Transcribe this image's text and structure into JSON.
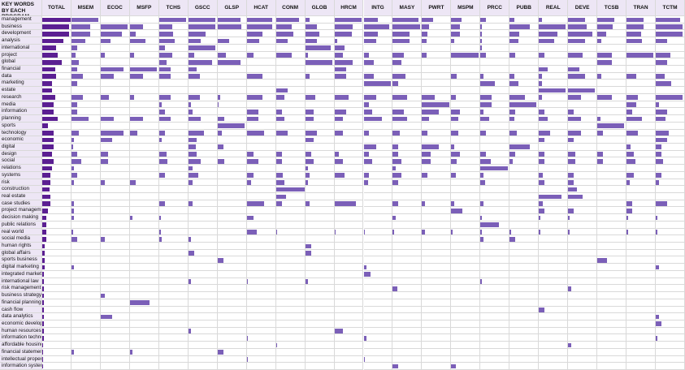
{
  "chart_data": {
    "type": "bar-table",
    "title": "KEY WORDS BY EACH PROGRAM",
    "xlim": [
      0,
      100
    ],
    "categories": [
      "management",
      "business",
      "development",
      "analysis",
      "international",
      "project",
      "global",
      "financial",
      "data",
      "marketing",
      "estate",
      "research",
      "media",
      "information",
      "planning",
      "sports",
      "technology",
      "economic",
      "digital",
      "design",
      "social",
      "relations",
      "systems",
      "risk",
      "construction",
      "real estate",
      "case studies",
      "project management",
      "decision making",
      "public relations",
      "real world",
      "social media",
      "human rights",
      "global affairs",
      "sports business",
      "digital marketing",
      "integrated marketing",
      "international law",
      "risk management",
      "business strategy",
      "financial planning",
      "cash flow",
      "data analytics",
      "economic development",
      "human resources",
      "information technology",
      "affordable housing",
      "financial statement",
      "intellectual property",
      "information systems"
    ],
    "series": [
      {
        "name": "TOTAL",
        "color": "#5b1f92",
        "values": [
          100,
          95,
          95,
          75,
          50,
          55,
          70,
          45,
          50,
          35,
          35,
          45,
          40,
          40,
          55,
          20,
          40,
          40,
          40,
          35,
          40,
          35,
          30,
          30,
          25,
          30,
          30,
          20,
          15,
          15,
          15,
          15,
          10,
          10,
          8,
          8,
          6,
          6,
          6,
          6,
          6,
          6,
          6,
          5,
          5,
          5,
          4,
          4,
          4,
          4
        ]
      },
      {
        "name": "MSEM",
        "color": "#7b5fb8",
        "values": [
          95,
          65,
          65,
          50,
          20,
          15,
          25,
          20,
          40,
          20,
          0,
          40,
          20,
          20,
          60,
          0,
          25,
          10,
          5,
          20,
          35,
          10,
          20,
          10,
          0,
          0,
          10,
          10,
          10,
          0,
          5,
          20,
          0,
          0,
          0,
          10,
          0,
          0,
          0,
          0,
          0,
          0,
          0,
          0,
          0,
          0,
          0,
          10,
          0,
          0
        ]
      },
      {
        "name": "ECOC",
        "color": "#7b5fb8",
        "values": [
          0,
          95,
          75,
          35,
          0,
          15,
          0,
          80,
          45,
          0,
          0,
          30,
          0,
          0,
          45,
          0,
          80,
          40,
          0,
          25,
          25,
          0,
          0,
          15,
          0,
          0,
          0,
          0,
          0,
          0,
          0,
          15,
          0,
          0,
          0,
          0,
          0,
          0,
          0,
          15,
          0,
          0,
          40,
          0,
          0,
          0,
          0,
          0,
          0,
          0
        ]
      },
      {
        "name": "MSFP",
        "color": "#7b5fb8",
        "values": [
          0,
          45,
          20,
          55,
          0,
          15,
          0,
          95,
          45,
          0,
          0,
          15,
          0,
          0,
          45,
          0,
          25,
          0,
          0,
          0,
          0,
          0,
          0,
          20,
          0,
          0,
          0,
          0,
          10,
          0,
          0,
          0,
          0,
          0,
          0,
          0,
          0,
          0,
          0,
          0,
          70,
          0,
          0,
          0,
          0,
          0,
          0,
          10,
          0,
          0
        ]
      },
      {
        "name": "TCHS",
        "color": "#7b5fb8",
        "values": [
          95,
          45,
          50,
          55,
          20,
          45,
          25,
          40,
          40,
          0,
          0,
          40,
          10,
          20,
          40,
          0,
          20,
          10,
          0,
          25,
          30,
          0,
          20,
          0,
          0,
          0,
          20,
          0,
          5,
          0,
          5,
          10,
          0,
          0,
          0,
          0,
          0,
          0,
          0,
          0,
          0,
          0,
          0,
          0,
          0,
          0,
          0,
          0,
          0,
          0
        ]
      },
      {
        "name": "GSCC",
        "color": "#7b5fb8",
        "values": [
          95,
          95,
          60,
          45,
          95,
          20,
          85,
          30,
          40,
          0,
          0,
          40,
          10,
          15,
          45,
          0,
          55,
          30,
          25,
          30,
          45,
          15,
          35,
          15,
          0,
          0,
          15,
          0,
          0,
          0,
          0,
          10,
          0,
          20,
          0,
          0,
          0,
          10,
          0,
          0,
          0,
          0,
          0,
          0,
          10,
          0,
          0,
          0,
          0,
          0
        ]
      },
      {
        "name": "GLSP",
        "color": "#7b5fb8",
        "values": [
          80,
          85,
          0,
          40,
          0,
          30,
          80,
          0,
          0,
          0,
          0,
          10,
          5,
          0,
          25,
          95,
          15,
          0,
          20,
          0,
          25,
          0,
          0,
          0,
          0,
          0,
          0,
          0,
          0,
          0,
          0,
          0,
          0,
          0,
          20,
          0,
          0,
          0,
          0,
          0,
          0,
          0,
          0,
          0,
          0,
          0,
          0,
          20,
          0,
          0
        ]
      },
      {
        "name": "HCAT",
        "color": "#7b5fb8",
        "values": [
          90,
          90,
          55,
          45,
          0,
          25,
          0,
          0,
          55,
          0,
          0,
          55,
          0,
          40,
          40,
          0,
          60,
          0,
          0,
          25,
          40,
          0,
          25,
          15,
          0,
          0,
          60,
          0,
          25,
          0,
          35,
          0,
          0,
          0,
          0,
          0,
          0,
          5,
          0,
          0,
          0,
          0,
          0,
          0,
          0,
          5,
          0,
          0,
          5,
          0
        ]
      },
      {
        "name": "CONM",
        "color": "#7b5fb8",
        "values": [
          80,
          55,
          60,
          40,
          0,
          55,
          0,
          0,
          0,
          0,
          40,
          30,
          0,
          20,
          30,
          0,
          40,
          0,
          0,
          20,
          20,
          0,
          25,
          30,
          100,
          35,
          20,
          0,
          0,
          0,
          5,
          0,
          0,
          0,
          0,
          0,
          0,
          0,
          0,
          0,
          0,
          0,
          0,
          0,
          0,
          0,
          5,
          0,
          0,
          0
        ]
      },
      {
        "name": "GLOB",
        "color": "#7b5fb8",
        "values": [
          15,
          40,
          50,
          40,
          90,
          10,
          95,
          0,
          15,
          0,
          0,
          35,
          0,
          30,
          30,
          0,
          40,
          30,
          0,
          20,
          30,
          10,
          15,
          10,
          0,
          0,
          15,
          0,
          0,
          0,
          0,
          0,
          20,
          20,
          0,
          0,
          0,
          10,
          0,
          0,
          0,
          0,
          0,
          0,
          0,
          0,
          0,
          0,
          0,
          0
        ]
      },
      {
        "name": "HRCM",
        "color": "#7b5fb8",
        "values": [
          95,
          65,
          60,
          10,
          35,
          30,
          65,
          40,
          40,
          0,
          0,
          50,
          0,
          40,
          30,
          0,
          30,
          0,
          0,
          15,
          30,
          0,
          35,
          0,
          0,
          0,
          75,
          0,
          0,
          0,
          5,
          0,
          0,
          0,
          0,
          0,
          0,
          0,
          0,
          0,
          0,
          0,
          0,
          0,
          30,
          0,
          0,
          0,
          0,
          0
        ]
      },
      {
        "name": "INTG",
        "color": "#7b5fb8",
        "values": [
          50,
          90,
          50,
          45,
          0,
          20,
          35,
          0,
          35,
          95,
          0,
          45,
          20,
          30,
          65,
          0,
          20,
          0,
          45,
          20,
          30,
          0,
          20,
          15,
          0,
          0,
          0,
          0,
          0,
          0,
          5,
          0,
          0,
          0,
          0,
          10,
          25,
          0,
          0,
          0,
          0,
          0,
          0,
          0,
          0,
          10,
          0,
          0,
          5,
          0
        ]
      },
      {
        "name": "MASY",
        "color": "#7b5fb8",
        "values": [
          90,
          95,
          60,
          60,
          0,
          40,
          30,
          0,
          45,
          20,
          0,
          50,
          0,
          40,
          50,
          0,
          25,
          0,
          20,
          20,
          30,
          10,
          30,
          20,
          0,
          0,
          20,
          0,
          10,
          0,
          5,
          0,
          0,
          0,
          0,
          0,
          0,
          0,
          15,
          0,
          0,
          0,
          0,
          0,
          0,
          0,
          0,
          0,
          0,
          20
        ]
      },
      {
        "name": "PWRT",
        "color": "#7b5fb8",
        "values": [
          40,
          25,
          20,
          15,
          0,
          15,
          0,
          0,
          0,
          0,
          0,
          45,
          95,
          60,
          25,
          0,
          20,
          0,
          60,
          30,
          30,
          0,
          20,
          0,
          0,
          0,
          10,
          0,
          0,
          0,
          10,
          0,
          0,
          0,
          0,
          0,
          0,
          0,
          0,
          0,
          0,
          0,
          0,
          0,
          0,
          0,
          0,
          0,
          0,
          0
        ]
      },
      {
        "name": "MSPM",
        "color": "#7b5fb8",
        "values": [
          35,
          30,
          30,
          10,
          0,
          95,
          0,
          0,
          20,
          0,
          0,
          15,
          0,
          30,
          25,
          0,
          25,
          0,
          10,
          30,
          20,
          0,
          15,
          0,
          0,
          0,
          10,
          40,
          0,
          0,
          5,
          0,
          0,
          0,
          0,
          0,
          0,
          0,
          0,
          0,
          0,
          0,
          0,
          0,
          0,
          0,
          0,
          0,
          0,
          15
        ]
      },
      {
        "name": "PRCC",
        "color": "#7b5fb8",
        "values": [
          20,
          5,
          5,
          5,
          5,
          20,
          0,
          0,
          10,
          50,
          0,
          40,
          40,
          10,
          30,
          0,
          20,
          0,
          0,
          20,
          35,
          95,
          10,
          15,
          0,
          0,
          10,
          0,
          5,
          65,
          5,
          10,
          0,
          0,
          0,
          0,
          0,
          5,
          0,
          0,
          0,
          0,
          0,
          0,
          0,
          0,
          0,
          0,
          0,
          0
        ]
      },
      {
        "name": "PUBB",
        "color": "#7b5fb8",
        "values": [
          15,
          70,
          35,
          30,
          0,
          20,
          0,
          0,
          15,
          30,
          0,
          55,
          95,
          20,
          15,
          0,
          25,
          0,
          70,
          20,
          10,
          0,
          0,
          0,
          0,
          0,
          0,
          0,
          0,
          0,
          5,
          20,
          0,
          0,
          0,
          0,
          0,
          0,
          0,
          0,
          0,
          0,
          0,
          0,
          0,
          0,
          0,
          0,
          0,
          0
        ]
      },
      {
        "name": "REAL",
        "color": "#7b5fb8",
        "values": [
          10,
          95,
          65,
          55,
          0,
          20,
          0,
          30,
          10,
          10,
          95,
          10,
          0,
          20,
          30,
          0,
          40,
          20,
          0,
          20,
          20,
          0,
          15,
          20,
          0,
          80,
          15,
          20,
          5,
          0,
          5,
          0,
          0,
          0,
          0,
          0,
          0,
          0,
          0,
          0,
          0,
          20,
          0,
          0,
          0,
          0,
          0,
          0,
          0,
          0
        ]
      },
      {
        "name": "DEVE",
        "color": "#7b5fb8",
        "values": [
          60,
          65,
          85,
          60,
          0,
          50,
          0,
          40,
          60,
          0,
          95,
          45,
          0,
          20,
          45,
          0,
          45,
          20,
          0,
          25,
          25,
          0,
          20,
          20,
          30,
          50,
          0,
          20,
          5,
          0,
          5,
          0,
          0,
          0,
          0,
          0,
          0,
          0,
          10,
          0,
          0,
          0,
          0,
          0,
          0,
          0,
          10,
          0,
          0,
          0
        ]
      },
      {
        "name": "TCSB",
        "color": "#7b5fb8",
        "values": [
          60,
          55,
          30,
          15,
          0,
          50,
          50,
          0,
          15,
          0,
          0,
          50,
          0,
          0,
          10,
          95,
          20,
          0,
          0,
          20,
          20,
          0,
          0,
          0,
          0,
          0,
          0,
          0,
          0,
          0,
          0,
          0,
          0,
          0,
          35,
          0,
          0,
          0,
          0,
          0,
          0,
          0,
          0,
          0,
          0,
          0,
          0,
          0,
          0,
          0
        ]
      },
      {
        "name": "TRAN",
        "color": "#7b5fb8",
        "values": [
          60,
          60,
          50,
          55,
          0,
          95,
          0,
          0,
          35,
          0,
          0,
          40,
          35,
          20,
          55,
          0,
          40,
          0,
          15,
          25,
          30,
          0,
          25,
          10,
          0,
          0,
          20,
          20,
          5,
          0,
          5,
          0,
          0,
          0,
          0,
          0,
          0,
          0,
          0,
          0,
          0,
          0,
          0,
          0,
          0,
          0,
          0,
          0,
          0,
          0
        ]
      },
      {
        "name": "TCTM",
        "color": "#7b5fb8",
        "values": [
          85,
          95,
          95,
          40,
          0,
          50,
          40,
          0,
          30,
          55,
          0,
          95,
          10,
          40,
          35,
          0,
          45,
          40,
          20,
          20,
          25,
          0,
          20,
          10,
          0,
          0,
          40,
          0,
          5,
          0,
          5,
          0,
          0,
          0,
          0,
          10,
          0,
          0,
          0,
          0,
          0,
          0,
          10,
          20,
          0,
          5,
          0,
          0,
          0,
          0
        ]
      }
    ]
  }
}
